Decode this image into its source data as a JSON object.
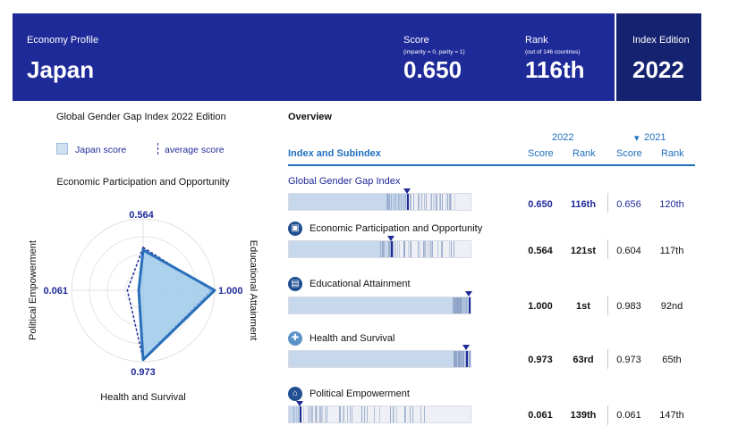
{
  "header": {
    "profile_label": "Economy Profile",
    "economy": "Japan",
    "score_label": "Score",
    "score_sub": "(imparity = 0, parity = 1)",
    "score": "0.650",
    "rank_label": "Rank",
    "rank_sub": "(out of 146 countries)",
    "rank": "116th",
    "edition_label": "Index Edition",
    "edition": "2022"
  },
  "radar": {
    "title": "Global Gender Gap Index 2022 Edition",
    "legend_japan": "Japan score",
    "legend_avg": "average score",
    "axis_top": "Economic Participation and Opportunity",
    "axis_right": "Educational Attainment",
    "axis_bottom": "Health and Survival",
    "axis_left": "Political Empowerment",
    "val_top": "0.564",
    "val_right": "1.000",
    "val_bottom": "0.973",
    "val_left": "0.061",
    "japan": [
      0.564,
      1.0,
      0.973,
      0.061
    ],
    "average": [
      0.6,
      0.95,
      0.96,
      0.22
    ]
  },
  "overview": {
    "title": "Overview",
    "col_index": "Index and Subindex",
    "year_2022": "2022",
    "year_2021": "2021",
    "col_score": "Score",
    "col_rank": "Rank",
    "rows": [
      {
        "name": "Global Gender Gap Index",
        "score": "0.650",
        "rank": "116th",
        "score21": "0.656",
        "rank21": "120th",
        "value": 0.65
      },
      {
        "name": "Economic Participation and Opportunity",
        "score": "0.564",
        "rank": "121st",
        "score21": "0.604",
        "rank21": "117th",
        "value": 0.564
      },
      {
        "name": "Educational Attainment",
        "score": "1.000",
        "rank": "1st",
        "score21": "0.983",
        "rank21": "92nd",
        "value": 1.0
      },
      {
        "name": "Health and Survival",
        "score": "0.973",
        "rank": "63rd",
        "score21": "0.973",
        "rank21": "65th",
        "value": 0.973
      },
      {
        "name": "Political Empowerment",
        "score": "0.061",
        "rank": "139th",
        "score21": "0.061",
        "rank21": "147th",
        "value": 0.061
      }
    ]
  },
  "colors": {
    "header": "#1f2a99",
    "edition": "#152270",
    "accent": "#1f6fbf"
  },
  "icons": [
    "briefcase-icon",
    "book-icon",
    "health-cross-icon",
    "government-building-icon"
  ]
}
